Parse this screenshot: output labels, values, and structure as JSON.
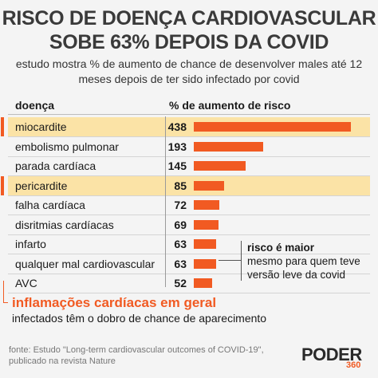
{
  "title_lines": [
    "RISCO DE DOENÇA CARDIOVASCULAR",
    "SOBE 63% DEPOIS DA COVID"
  ],
  "subtitle_lines": [
    "estudo mostra % de aumento de chance de desenvolver males até 12",
    "meses depois de ter sido infectado por covid"
  ],
  "headers": {
    "disease": "doença",
    "risk": "% de aumento de risco"
  },
  "note": {
    "bold": "risco é maior",
    "line2": "mesmo para quem teve",
    "line3": "versão leve da covid"
  },
  "inflammation": {
    "title": "inflamações cardíacas em geral",
    "subtitle": "infectados têm o dobro de chance de aparecimento"
  },
  "source_lines": [
    "fonte: Estudo \"Long-term cardiovascular outcomes of COVID-19\",",
    "publicado na revista Nature"
  ],
  "logo": {
    "word": "PODER",
    "num": "360"
  },
  "colors": {
    "accent": "#f15a22",
    "highlight": "#fbe3a6"
  },
  "chart_data": {
    "type": "bar",
    "categories": [
      "miocardite",
      "embolismo pulmonar",
      "parada cardíaca",
      "pericardite",
      "falha cardíaca",
      "disritmias cardíacas",
      "infarto",
      "qualquer mal cardiovascular",
      "AVC"
    ],
    "values": [
      438,
      193,
      145,
      85,
      72,
      69,
      63,
      63,
      52
    ],
    "highlighted": [
      true,
      false,
      false,
      true,
      false,
      false,
      false,
      false,
      false
    ],
    "xlabel": "% de aumento de risco",
    "ylabel": "doença",
    "xlim": [
      0,
      438
    ]
  }
}
